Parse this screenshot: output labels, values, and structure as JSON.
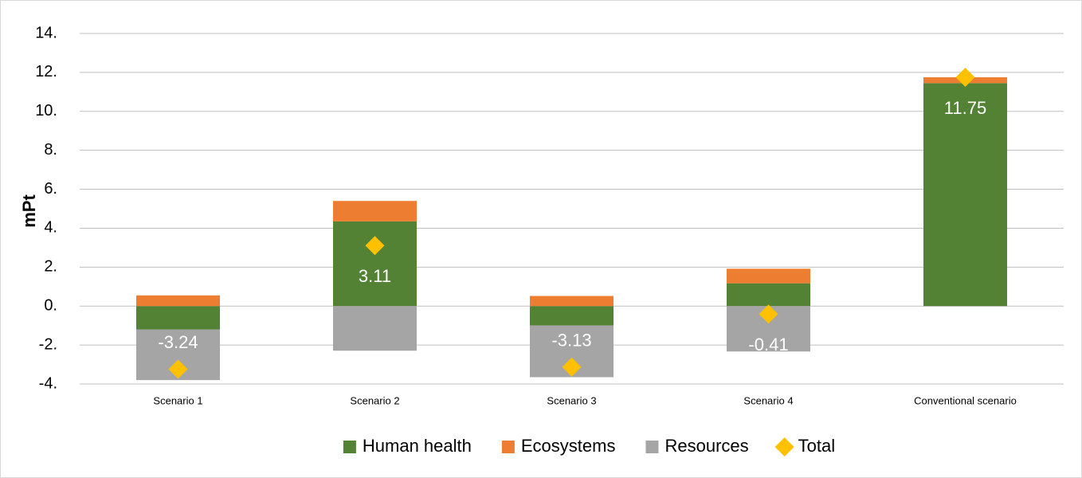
{
  "chart_data": {
    "type": "stacked_bar",
    "y_label": "mPt",
    "categories": [
      "Scenario 1",
      "Scenario 2",
      "Scenario 3",
      "Scenario 4",
      "Conventional scenario"
    ],
    "series": [
      {
        "name": "Human health",
        "color": "#548235",
        "values": [
          -1.2,
          4.35,
          -1.0,
          1.17,
          11.45
        ]
      },
      {
        "name": "Ecosystems",
        "color": "#ed7d31",
        "values": [
          0.55,
          1.05,
          0.52,
          0.75,
          0.3
        ]
      },
      {
        "name": "Resources",
        "color": "#a5a5a5",
        "values": [
          -2.6,
          -2.29,
          -2.65,
          -2.33,
          0
        ]
      },
      {
        "name": "Total",
        "color": "#ffc000",
        "marker": "diamond",
        "data_labels": true,
        "values": [
          -3.24,
          3.11,
          -3.13,
          -0.41,
          11.75
        ]
      }
    ],
    "ylim": [
      -4,
      14
    ],
    "yticks": [
      {
        "value": -4,
        "label": "-4."
      },
      {
        "value": -2,
        "label": "-2."
      },
      {
        "value": 0,
        "label": "0."
      },
      {
        "value": 2,
        "label": "2."
      },
      {
        "value": 4,
        "label": "4."
      },
      {
        "value": 6,
        "label": "6."
      },
      {
        "value": 8,
        "label": "8."
      },
      {
        "value": 10,
        "label": "10."
      },
      {
        "value": 12,
        "label": "12."
      },
      {
        "value": 14,
        "label": "14."
      }
    ],
    "grid": true,
    "legend": "bottom"
  }
}
